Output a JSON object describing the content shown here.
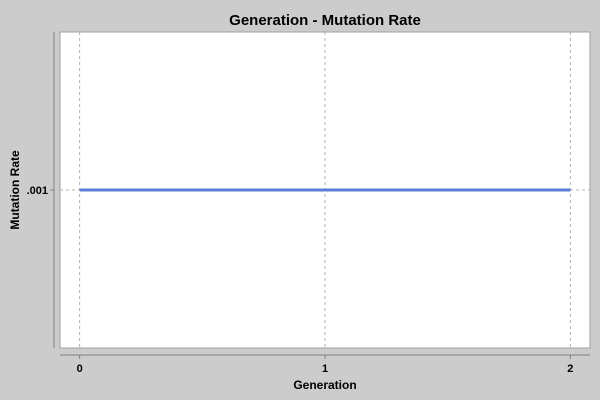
{
  "chart_data": {
    "type": "line",
    "title": "Generation - Mutation Rate",
    "xlabel": "Generation",
    "ylabel": "Mutation Rate",
    "x": [
      0,
      1,
      2
    ],
    "x_ticks": [
      "0",
      "1",
      "2"
    ],
    "y_ticks": [
      {
        "value": 0.001,
        "label": ".001"
      }
    ],
    "xlim": [
      -0.08,
      2.08
    ],
    "ylim": [
      0.0005,
      0.0015
    ],
    "grid": true,
    "legend": "none",
    "series": [
      {
        "values": [
          0.001,
          0.001,
          0.001
        ],
        "color": "#5a7ed6"
      }
    ]
  },
  "colors": {
    "background": "#cccccc",
    "plot_background": "#ffffff",
    "grid": "#b0b0b0",
    "axis": "#808080"
  }
}
